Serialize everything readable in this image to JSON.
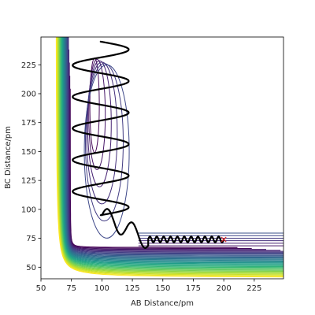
{
  "chart_data": {
    "type": "contour",
    "title": "",
    "xlabel": "AB Distance/pm",
    "ylabel": "BC Distance/pm",
    "xlim": [
      50,
      249
    ],
    "ylim": [
      40,
      249
    ],
    "xticks": [
      50,
      75,
      100,
      125,
      150,
      175,
      200,
      225
    ],
    "yticks": [
      50,
      75,
      100,
      125,
      150,
      175,
      200,
      225
    ],
    "colormap": "viridis",
    "grid": false,
    "contour_levels": {
      "count": 32,
      "well_x": 74,
      "well_y": 74,
      "inner_x": 94,
      "inner_y": 70
    },
    "trajectory": {
      "start": [
        100,
        120
      ],
      "end": [
        200,
        74
      ],
      "color": "#000000",
      "marker_at_end": "x",
      "marker_color": "#d62728"
    }
  }
}
